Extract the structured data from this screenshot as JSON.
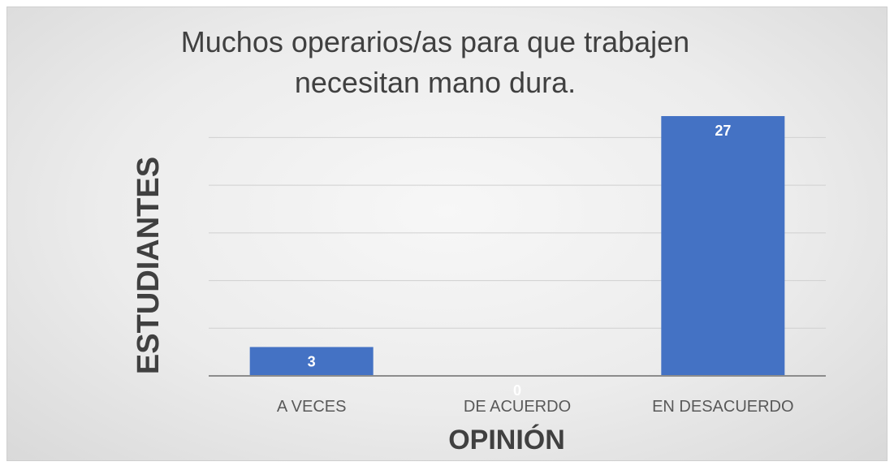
{
  "chart_data": {
    "type": "bar",
    "title_lines": [
      "Muchos operarios/as para que trabajen",
      "necesitan mano dura."
    ],
    "xlabel": "OPINIÓN",
    "ylabel": "ESTUDIANTES",
    "categories": [
      "A VECES",
      "DE ACUERDO",
      "EN DESACUERDO"
    ],
    "values": [
      3,
      0,
      27
    ],
    "ylim": [
      0,
      27
    ],
    "grid": true,
    "legend": "none",
    "bar_color": "#4472C4"
  }
}
